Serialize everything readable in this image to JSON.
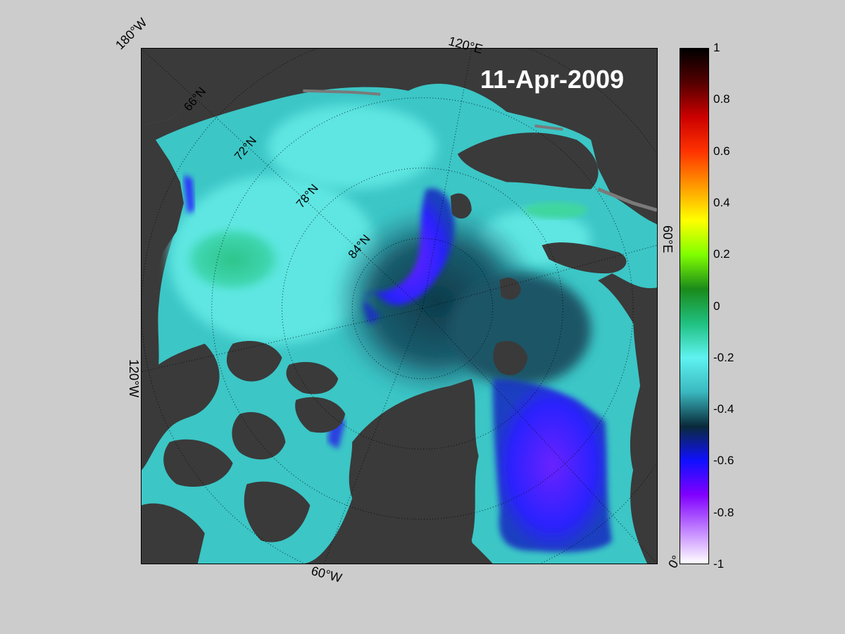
{
  "date": "11-Apr-2009",
  "longitude_labels": {
    "w180": "180°W",
    "e120": "120°E",
    "e60": "60°E",
    "zero": "0°",
    "w60": "60°W",
    "w120": "120°W"
  },
  "latitude_labels": [
    "66°N",
    "72°N",
    "78°N",
    "84°N"
  ],
  "colorbar": {
    "ticks": [
      "1",
      "0.8",
      "0.6",
      "0.4",
      "0.2",
      "0",
      "-0.2",
      "-0.4",
      "-0.6",
      "-0.8",
      "-1"
    ],
    "range": [
      -1,
      1
    ],
    "colors": [
      "#ffffff",
      "#c080ff",
      "#8000ff",
      "#1010ff",
      "#0a2a3a",
      "#3ab8c0",
      "#5ff2f0",
      "#20c080",
      "#1a8a1a",
      "#80ff00",
      "#ffff00",
      "#ff9900",
      "#ff3300",
      "#cc0000",
      "#550000",
      "#000000"
    ]
  },
  "colors": {
    "land": "#3a3a3a",
    "ice_free_land": "#7a7a7a",
    "background": "#cccccc"
  }
}
